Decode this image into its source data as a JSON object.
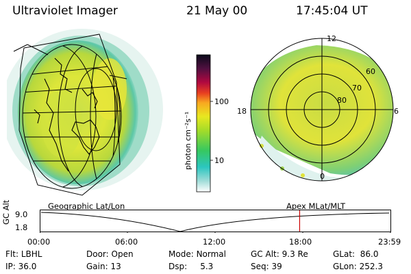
{
  "header": {
    "title": "Ultraviolet Imager",
    "date": "21 May 00",
    "time": "17:45:04 UT"
  },
  "colorbar": {
    "unit_label": "photon cm⁻²s⁻¹",
    "tick_100": "100",
    "tick_10": "10"
  },
  "polar_plot": {
    "ring_labels": [
      "60",
      "70",
      "80"
    ],
    "clock_labels": [
      "12",
      "18",
      "6",
      "0"
    ]
  },
  "timeline": {
    "left_title": "Geographic Lat/Lon",
    "right_title": "Apex MLat/MLT",
    "y_axis_title": "GC Alt",
    "y_ticks": [
      "9.0",
      "1.8"
    ],
    "x_ticks": [
      "00:00",
      "06:00",
      "12:00",
      "18:00",
      "23:59"
    ],
    "marker_time": "17:45",
    "marker_color": "#cc0000"
  },
  "status": {
    "row1": [
      {
        "label": "Flt:",
        "value": "LBHL"
      },
      {
        "label": "Door:",
        "value": "Open"
      },
      {
        "label": "Mode:",
        "value": "Normal"
      },
      {
        "label": "GC Alt:",
        "value": "9.3 Re"
      },
      {
        "label": "GLat:",
        "value": "86.0"
      }
    ],
    "row2": [
      {
        "label": "IP:",
        "value": "36.0"
      },
      {
        "label": "Gain:",
        "value": "13"
      },
      {
        "label": "Dsp:",
        "value": "5.3"
      },
      {
        "label": "Seq:",
        "value": "39"
      },
      {
        "label": "GLon:",
        "value": "252.3"
      }
    ]
  }
}
